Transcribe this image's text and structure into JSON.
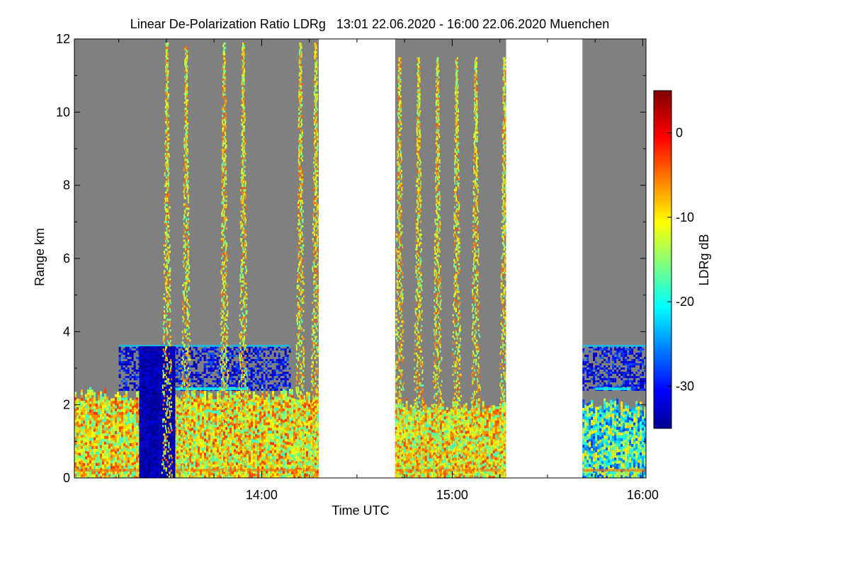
{
  "chart_data": {
    "type": "heatmap",
    "title": "Linear De-Polarization Ratio LDRg   13:01 22.06.2020 - 16:00 22.06.2020 Muenchen",
    "xlabel": "Time UTC",
    "ylabel": "Range km",
    "xlim_hours": [
      13.017,
      16.017
    ],
    "ylim_km": [
      0,
      12
    ],
    "x_ticks": [
      {
        "value": 14.0,
        "label": "14:00"
      },
      {
        "value": 15.0,
        "label": "15:00"
      },
      {
        "value": 16.0,
        "label": "16:00"
      }
    ],
    "y_ticks": [
      {
        "value": 0,
        "label": "0"
      },
      {
        "value": 2,
        "label": "2"
      },
      {
        "value": 4,
        "label": "4"
      },
      {
        "value": 6,
        "label": "6"
      },
      {
        "value": 8,
        "label": "8"
      },
      {
        "value": 10,
        "label": "10"
      },
      {
        "value": 12,
        "label": "12"
      }
    ],
    "colorbar": {
      "label": "LDRg dB",
      "range_db": [
        -35,
        5
      ],
      "ticks": [
        {
          "value": 0,
          "label": "0"
        },
        {
          "value": -10,
          "label": "-10"
        },
        {
          "value": -20,
          "label": "-20"
        },
        {
          "value": -30,
          "label": "-30"
        }
      ],
      "colormap": "jet"
    },
    "no_signal_color": "#808080",
    "missing_data_color": "#ffffff",
    "data_segments": [
      {
        "start_hours": 13.017,
        "end_hours": 14.3
      },
      {
        "start_hours": 14.7,
        "end_hours": 15.283
      },
      {
        "start_hours": 15.683,
        "end_hours": 16.017
      }
    ],
    "gaps": [
      {
        "start_hours": 14.3,
        "end_hours": 14.7
      },
      {
        "start_hours": 15.283,
        "end_hours": 15.683
      }
    ],
    "boundary_layer": {
      "top_km": 2.0,
      "ldr_db": -10
    },
    "cloud_layers": [
      {
        "start_hours": 13.25,
        "end_hours": 14.15,
        "base_km": 2.4,
        "top_km": 3.6,
        "ldr_db": -30
      },
      {
        "start_hours": 15.683,
        "end_hours": 16.017,
        "base_km": 2.4,
        "top_km": 3.6,
        "ldr_db": -30
      }
    ],
    "precip_streaks": [
      {
        "time_hours": 13.45,
        "top_km": 3.6,
        "ldr_db": -33
      },
      {
        "time_hours": 13.5,
        "top_km": 11.9,
        "ldr_db": -10
      },
      {
        "time_hours": 13.6,
        "top_km": 11.8,
        "ldr_db": -10
      },
      {
        "time_hours": 13.8,
        "top_km": 11.9,
        "ldr_db": -10
      },
      {
        "time_hours": 13.9,
        "top_km": 11.9,
        "ldr_db": -10
      },
      {
        "time_hours": 14.2,
        "top_km": 11.9,
        "ldr_db": -10
      },
      {
        "time_hours": 14.28,
        "top_km": 11.9,
        "ldr_db": -10
      },
      {
        "time_hours": 14.72,
        "top_km": 11.5,
        "ldr_db": -10
      },
      {
        "time_hours": 14.82,
        "top_km": 11.5,
        "ldr_db": -10
      },
      {
        "time_hours": 14.92,
        "top_km": 11.5,
        "ldr_db": -10
      },
      {
        "time_hours": 15.02,
        "top_km": 11.5,
        "ldr_db": -10
      },
      {
        "time_hours": 15.12,
        "top_km": 11.5,
        "ldr_db": -10
      },
      {
        "time_hours": 15.27,
        "top_km": 11.5,
        "ldr_db": -10
      }
    ]
  }
}
